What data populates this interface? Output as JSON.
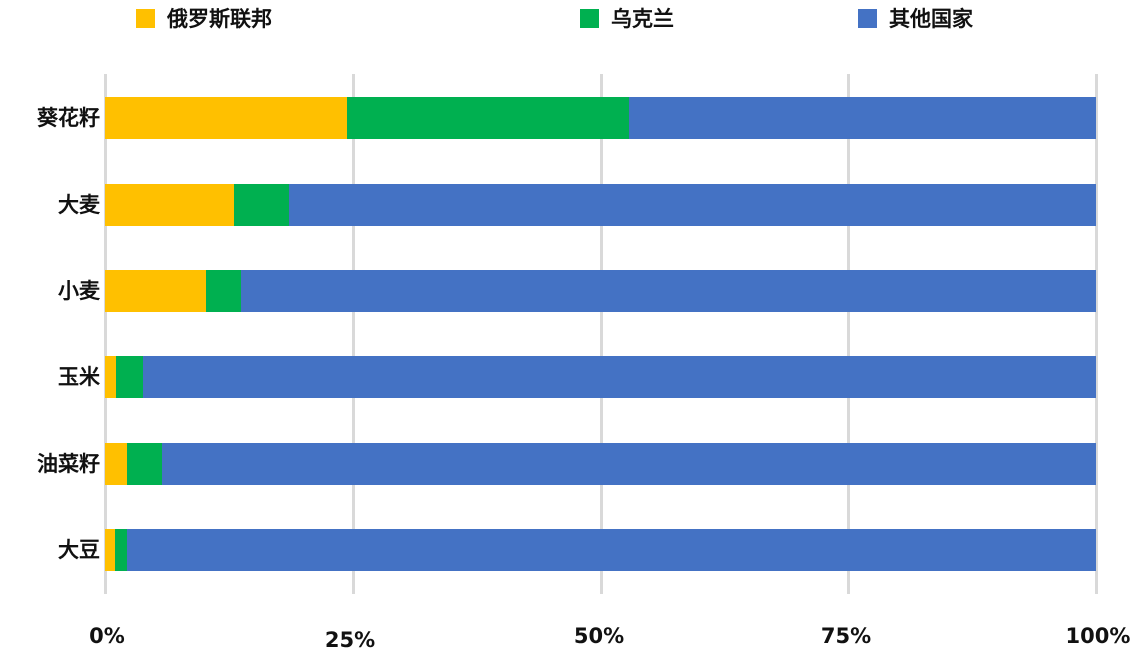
{
  "chart_data": {
    "type": "bar",
    "orientation": "horizontal",
    "stacked": "percent",
    "title": "",
    "xlabel": "",
    "ylabel": "",
    "xlim": [
      0,
      100
    ],
    "grid": true,
    "legend_position": "top",
    "categories": [
      "葵花籽",
      "大麦",
      "小麦",
      "玉米",
      "油菜籽",
      "大豆"
    ],
    "series": [
      {
        "name": "俄罗斯联邦",
        "color": "#FFC000",
        "values": [
          24.4,
          13.0,
          10.2,
          1.1,
          2.2,
          1.0
        ]
      },
      {
        "name": "乌克兰",
        "color": "#00B050",
        "values": [
          28.5,
          5.6,
          3.5,
          2.7,
          3.6,
          1.2
        ]
      },
      {
        "name": "其他国家",
        "color": "#4472C4",
        "values": [
          47.1,
          81.4,
          86.3,
          96.2,
          94.2,
          97.8
        ]
      }
    ],
    "x_ticks": [
      "0%",
      "25%",
      "50%",
      "75%",
      "100%"
    ]
  },
  "legend": {
    "items": [
      {
        "label": "俄罗斯联邦",
        "color": "#FFC000"
      },
      {
        "label": "乌克兰",
        "color": "#00B050"
      },
      {
        "label": "其他国家",
        "color": "#4472C4"
      }
    ]
  },
  "axis": {
    "ticks": [
      "0%",
      "25%",
      "50%",
      "75%",
      "100%"
    ]
  }
}
